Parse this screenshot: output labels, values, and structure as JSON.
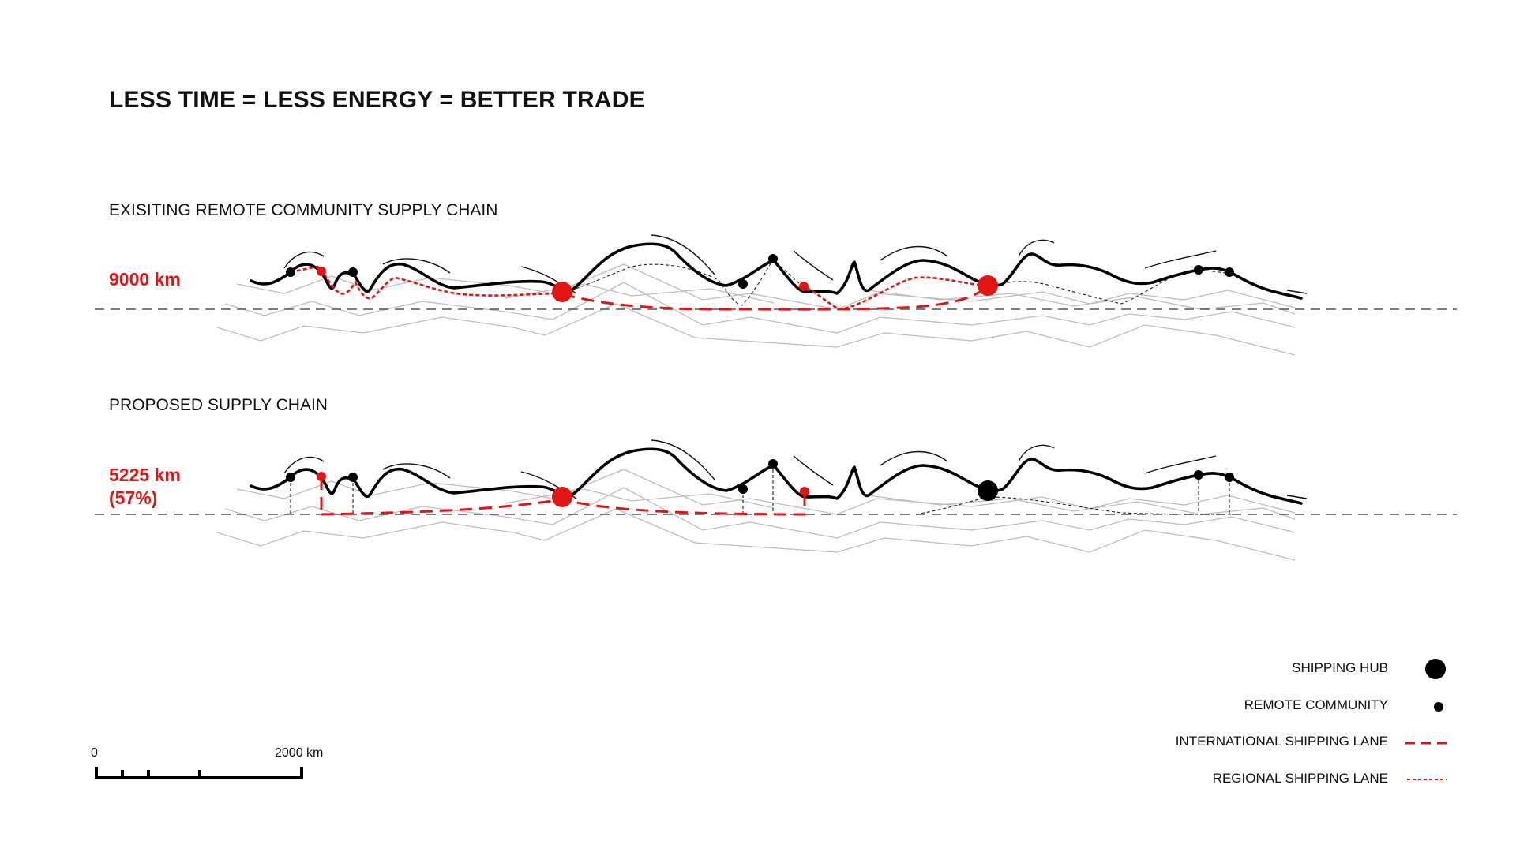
{
  "title": "LESS TIME = LESS ENERGY = BETTER TRADE",
  "sections": [
    {
      "label": "EXISITING REMOTE COMMUNITY SUPPLY CHAIN",
      "distance_lines": [
        "9000 km"
      ]
    },
    {
      "label": "PROPOSED SUPPLY CHAIN",
      "distance_lines": [
        "5225 km",
        "(57%)"
      ]
    }
  ],
  "legend": [
    {
      "label": "SHIPPING HUB",
      "symbol": "large-black-dot"
    },
    {
      "label": "REMOTE COMMUNITY",
      "symbol": "small-black-dot"
    },
    {
      "label": "INTERNATIONAL SHIPPING LANE",
      "symbol": "red-long-dash"
    },
    {
      "label": "REGIONAL SHIPPING LANE",
      "symbol": "red-short-dash"
    }
  ],
  "scale_bar": {
    "start_label": "0",
    "end_label": "2000 km"
  },
  "colors": {
    "accent": "#e31414",
    "ink": "#111111",
    "terrain": "#bdbdbd"
  }
}
